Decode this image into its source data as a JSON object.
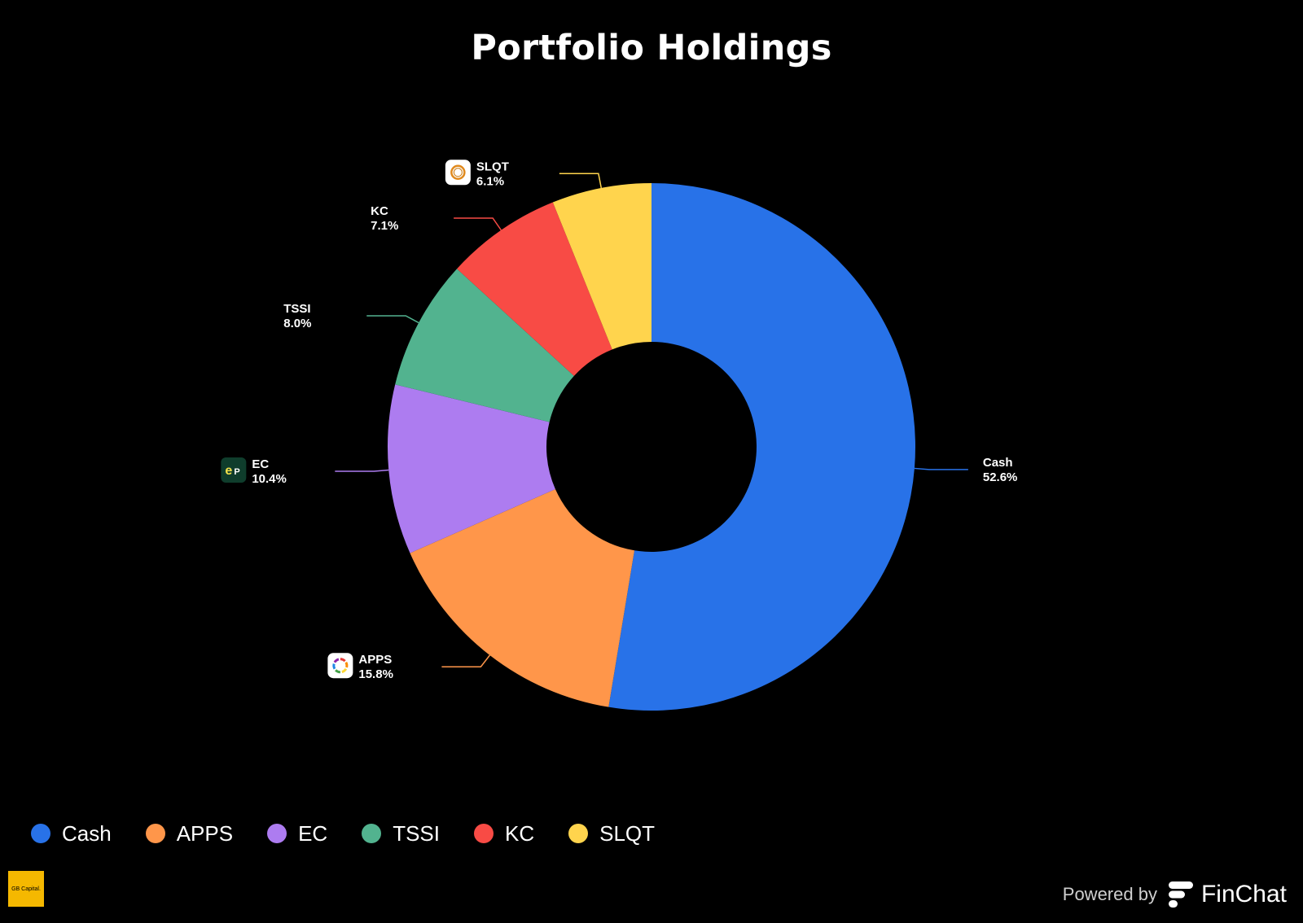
{
  "chart_data": {
    "type": "pie",
    "title": "Portfolio Holdings",
    "donut": true,
    "categories": [
      "Cash",
      "APPS",
      "EC",
      "TSSI",
      "KC",
      "SLQT"
    ],
    "values": [
      52.6,
      15.8,
      10.4,
      8.0,
      7.1,
      6.1
    ],
    "value_labels": [
      "52.6%",
      "15.8%",
      "10.4%",
      "8.0%",
      "7.1%",
      "6.1%"
    ],
    "colors": [
      "#2872e8",
      "#ff964a",
      "#ad7cf0",
      "#52b38f",
      "#f84b45",
      "#ffd44d"
    ],
    "legend_position": "bottom-left",
    "slice_icons": [
      "",
      "apps-logo-icon",
      "ec-logo-icon",
      "",
      "",
      "slqt-logo-icon"
    ]
  },
  "branding": {
    "logo_text": "GB Capital.",
    "powered_by": "Powered by",
    "brand_name": "FinChat"
  }
}
